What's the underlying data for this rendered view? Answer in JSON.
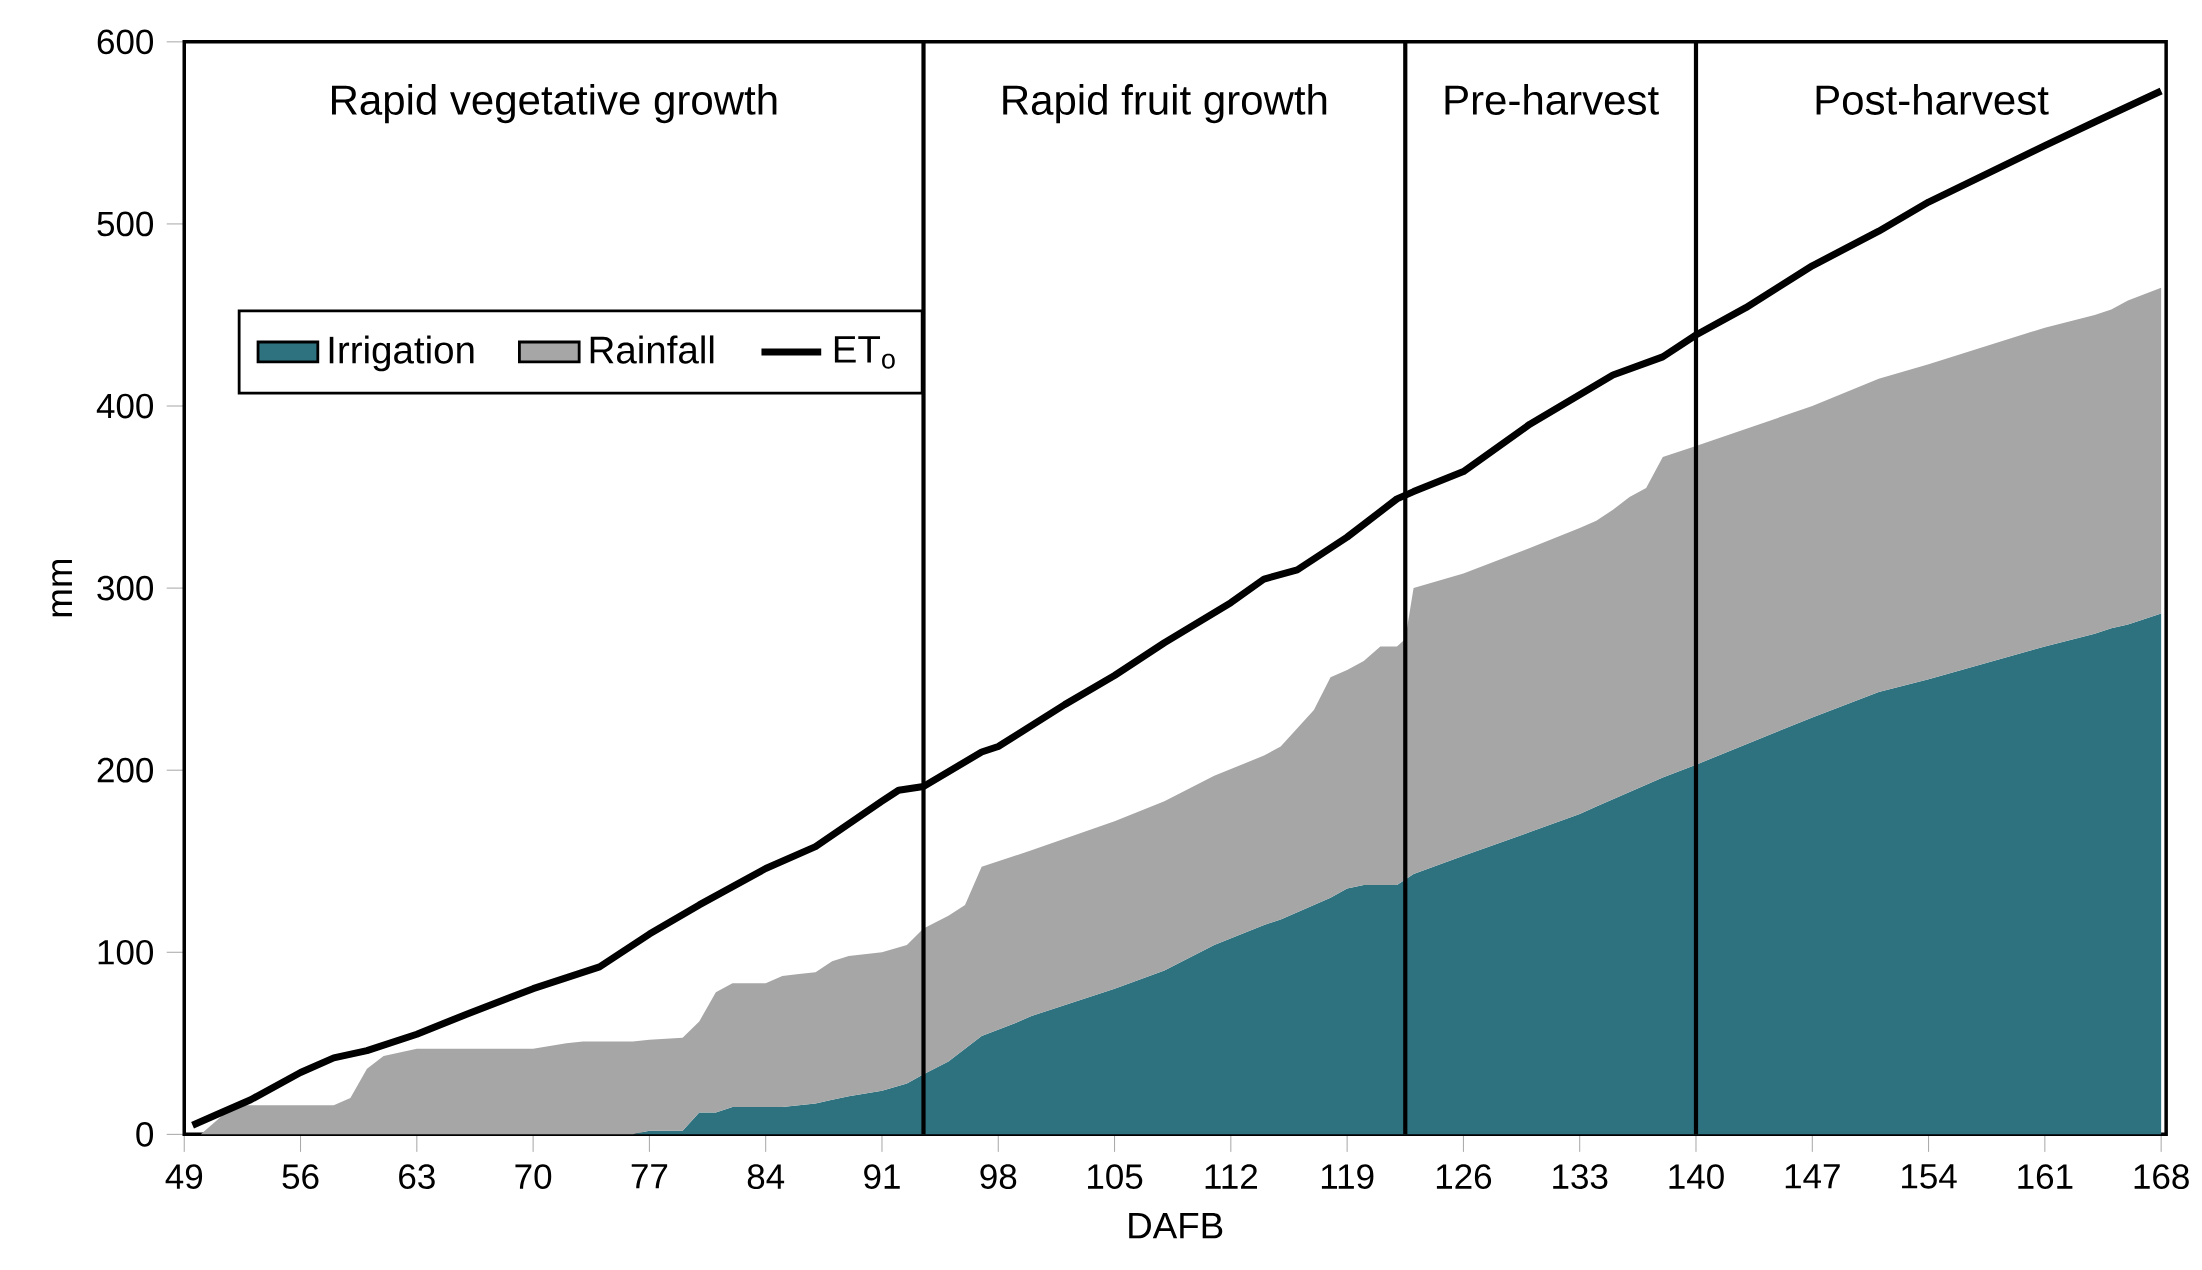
{
  "chart_data": {
    "type": "area",
    "xlabel": "DAFB",
    "ylabel": "mm",
    "stacked": true,
    "x": [
      49,
      50,
      51,
      52,
      58,
      59,
      60,
      61,
      63,
      70,
      72,
      73,
      76,
      77,
      79,
      80,
      81,
      82,
      84,
      85,
      86,
      87,
      88,
      89,
      91,
      92.5,
      93.5,
      95,
      96,
      97,
      99,
      100,
      105,
      108,
      111,
      114,
      115,
      117,
      118,
      119,
      120,
      121,
      122,
      122.5,
      123,
      126,
      130,
      133,
      134,
      135,
      136,
      137,
      138,
      140,
      147,
      151,
      154,
      161,
      164,
      165,
      166,
      168
    ],
    "series": [
      {
        "name": "Irrigation",
        "color": "#2e7280",
        "values": [
          0,
          0,
          0,
          0,
          0,
          0,
          0,
          0,
          0,
          0,
          0,
          0,
          0,
          2,
          2,
          12,
          12,
          15,
          15,
          15,
          16,
          17,
          19,
          21,
          24,
          28,
          33,
          40,
          47,
          54,
          61,
          65,
          80,
          90,
          104,
          115,
          118,
          126,
          130,
          135,
          137,
          137,
          137,
          140,
          143,
          153,
          166,
          176,
          180,
          184,
          188,
          192,
          196,
          203,
          229,
          243,
          250,
          268,
          275,
          278,
          280,
          286
        ]
      },
      {
        "name": "Rainfall",
        "color": "#a6a6a6",
        "values": [
          0,
          0,
          8,
          16,
          16,
          20,
          36,
          43,
          47,
          47,
          50,
          51,
          51,
          50,
          51,
          50,
          66,
          68,
          68,
          72,
          72,
          72,
          76,
          77,
          76,
          76,
          80,
          80,
          79,
          93,
          92,
          91,
          92,
          93,
          93,
          93,
          95,
          107,
          121,
          120,
          123,
          131,
          131,
          132,
          157,
          155,
          156,
          157,
          157,
          159,
          162,
          163,
          176,
          175,
          171,
          172,
          173,
          175,
          175,
          175,
          178,
          179
        ]
      },
      {
        "name": "ET$_{o}$",
        "type": "line",
        "color": "#000000",
        "x": [
          49.5,
          51,
          53,
          56,
          58,
          60,
          63,
          66,
          70,
          72,
          74,
          77,
          80,
          84,
          87,
          91,
          92,
          93.5,
          97,
          98,
          102,
          105,
          108,
          112,
          114,
          116,
          119,
          122,
          123,
          126,
          130,
          135,
          138,
          140,
          143,
          147,
          151,
          154,
          161,
          164,
          168
        ],
        "values": [
          5,
          11,
          19,
          34,
          42,
          46,
          55,
          66,
          80,
          86,
          92,
          110,
          126,
          146,
          158,
          183,
          189,
          191,
          210,
          213,
          236,
          252,
          270,
          292,
          305,
          310,
          328,
          349,
          353,
          364,
          390,
          417,
          427,
          439,
          454,
          477,
          496,
          512,
          543,
          556,
          573
        ]
      }
    ],
    "xlim": [
      49,
      168.3
    ],
    "ylim": [
      0,
      600
    ],
    "xticks": [
      49,
      56,
      63,
      70,
      77,
      84,
      91,
      98,
      105,
      112,
      119,
      126,
      133,
      140,
      147,
      154,
      161,
      168
    ],
    "yticks": [
      0,
      100,
      200,
      300,
      400,
      500,
      600
    ],
    "ref_lines": [
      {
        "axis": "x",
        "value": 93.5,
        "color": "#000000"
      },
      {
        "axis": "x",
        "value": 122.5,
        "color": "#000000"
      },
      {
        "axis": "x",
        "value": 140,
        "color": "#000000"
      }
    ],
    "annotations": [
      "Rapid vegetative growth",
      "Rapid fruit growth",
      "Pre-harvest",
      "Post-harvest"
    ],
    "legend": "left",
    "grid": false
  }
}
